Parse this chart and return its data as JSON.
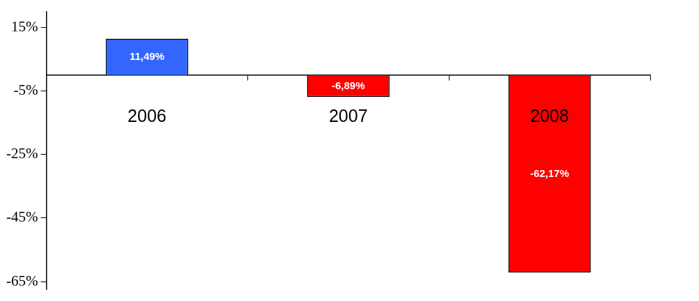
{
  "chart_data": {
    "type": "bar",
    "categories": [
      "2006",
      "2007",
      "2008"
    ],
    "values": [
      11.49,
      -6.89,
      -62.17
    ],
    "colors": [
      "#3366ff",
      "#ff0000",
      "#ff0000"
    ],
    "value_labels": [
      "11,49%",
      "-6,89%",
      "-62,17%"
    ],
    "ylim": [
      -67.5,
      20
    ],
    "yticks": [
      {
        "value": 15,
        "label": "15%"
      },
      {
        "value": -5,
        "label": "-5%"
      },
      {
        "value": -25,
        "label": "-25%"
      },
      {
        "value": -45,
        "label": "-45%"
      },
      {
        "value": -65,
        "label": "-65%"
      }
    ],
    "grid": false,
    "legend": false
  }
}
